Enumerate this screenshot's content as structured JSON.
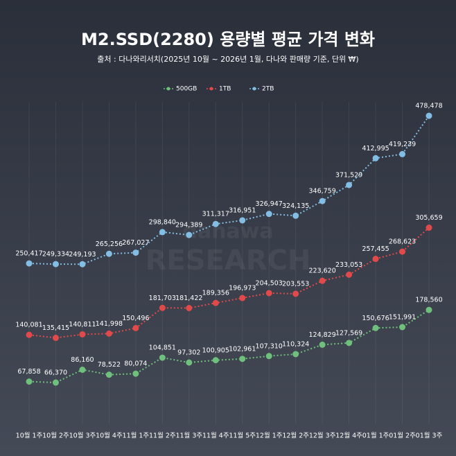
{
  "chart_data": {
    "type": "line",
    "title": "M2.SSD(2280) 용량별 평균 가격 변화",
    "subtitle": "출처 : 다나와리서치(2025년 10월 ~ 2026년 1월, 다나와 판매량 기준, 단위 ₩)",
    "watermark": [
      "danawa",
      "RESEARCH"
    ],
    "categories": [
      "10월 1주",
      "10월 2주",
      "10월 3주",
      "10월 4주",
      "11월 1주",
      "11월 2주",
      "11월 3주",
      "11월 4주",
      "11월 5주",
      "12월 1주",
      "12월 2주",
      "12월 3주",
      "12월 4주",
      "01월 1주",
      "01월 2주",
      "01월 3주"
    ],
    "series": [
      {
        "name": "500GB",
        "color": "#6fc07c",
        "values": [
          67858,
          66370,
          86160,
          78522,
          80074,
          104851,
          97302,
          100905,
          102961,
          107310,
          110324,
          124829,
          127569,
          150676,
          151991,
          178560
        ],
        "value_labels": [
          "67,858",
          "66,370",
          "86,160",
          "78,522",
          "80,074",
          "104,851",
          "97,302",
          "100,905",
          "102,961",
          "107,310",
          "110,324",
          "124,829",
          "127,569",
          "150,676",
          "151,991",
          "178,560"
        ]
      },
      {
        "name": "1TB",
        "color": "#e04a4a",
        "values": [
          140081,
          135415,
          140811,
          141998,
          150496,
          181703,
          181422,
          189356,
          196973,
          204503,
          203553,
          223620,
          233053,
          257455,
          268623,
          305659
        ],
        "value_labels": [
          "140,081",
          "135,415",
          "140,811",
          "141,998",
          "150,496",
          "181,703",
          "181,422",
          "189,356",
          "196,973",
          "204,503",
          "203,553",
          "223,620",
          "233,053",
          "257,455",
          "268,623",
          "305,659"
        ]
      },
      {
        "name": "2TB",
        "color": "#84bde3",
        "values": [
          250417,
          249334,
          249193,
          265256,
          267027,
          298840,
          294389,
          311317,
          316951,
          326947,
          324135,
          346759,
          371529,
          412995,
          419239,
          478478
        ],
        "value_labels": [
          "250,417",
          "249,334",
          "249,193",
          "265,256",
          "267,027",
          "298,840",
          "294,389",
          "311,317",
          "316,951",
          "326,947",
          "324,135",
          "346,759",
          "371,529",
          "412,995",
          "419,239",
          "478,478"
        ]
      }
    ],
    "ylim": [
      0,
      500000
    ],
    "grid": true
  }
}
